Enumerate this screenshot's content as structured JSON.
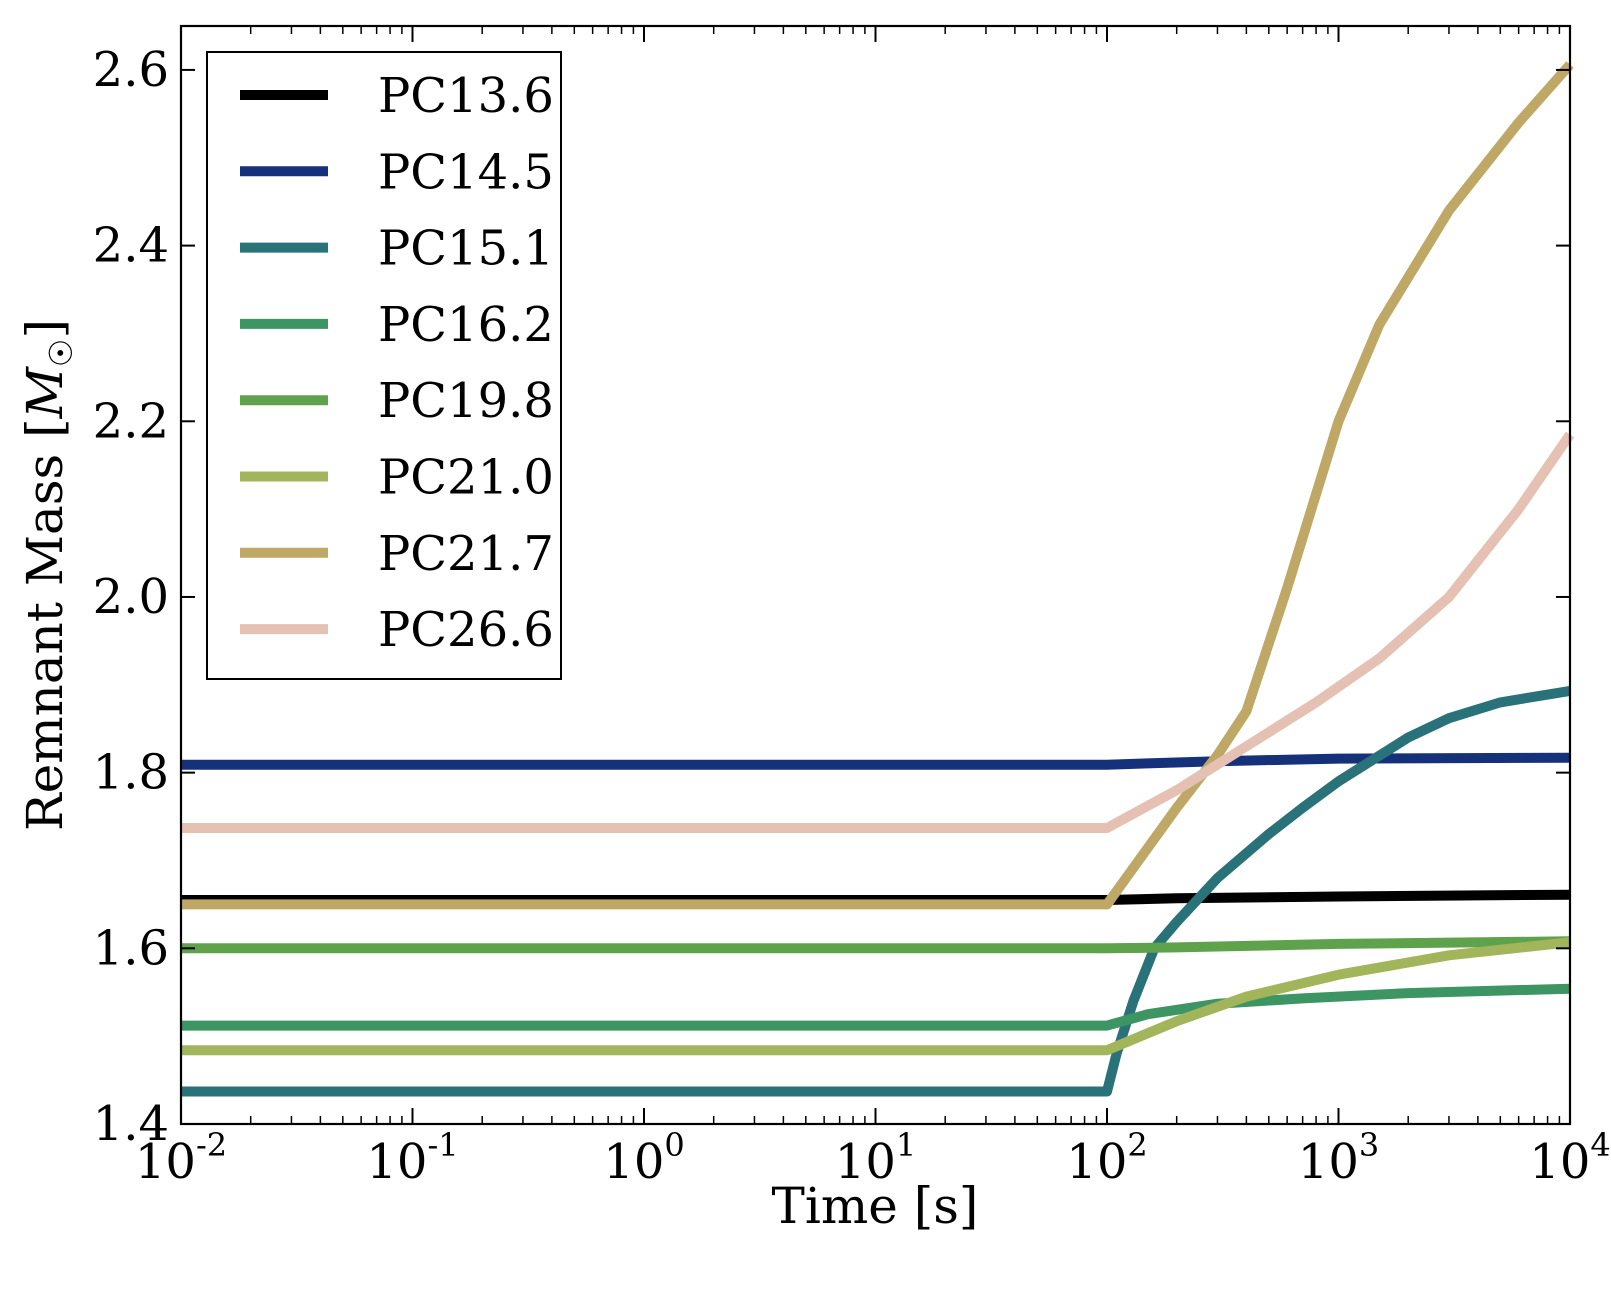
{
  "chart_data": {
    "type": "line",
    "title": "",
    "xlabel": "Time [s]",
    "ylabel_text": "Remnant Mass [",
    "ylabel_symbol": "M",
    "ylabel_subscript": "☉",
    "ylabel_close": "]",
    "xscale": "log",
    "xlim": [
      0.01,
      10000
    ],
    "ylim": [
      1.4,
      2.65
    ],
    "grid": false,
    "legend_position": "top-left",
    "x_ticks": [
      {
        "base": "10",
        "exp": "-2",
        "value": 0.01
      },
      {
        "base": "10",
        "exp": "-1",
        "value": 0.1
      },
      {
        "base": "10",
        "exp": "0",
        "value": 1
      },
      {
        "base": "10",
        "exp": "1",
        "value": 10
      },
      {
        "base": "10",
        "exp": "2",
        "value": 100
      },
      {
        "base": "10",
        "exp": "3",
        "value": 1000
      },
      {
        "base": "10",
        "exp": "4",
        "value": 10000
      }
    ],
    "y_ticks": [
      "1.4",
      "1.6",
      "1.8",
      "2.0",
      "2.2",
      "2.4",
      "2.6"
    ],
    "series": [
      {
        "name": "PC13.6",
        "color": "#000000",
        "x": [
          0.01,
          100,
          200,
          1000,
          10000
        ],
        "y": [
          1.655,
          1.655,
          1.657,
          1.659,
          1.661
        ]
      },
      {
        "name": "PC14.5",
        "color": "#15317a",
        "x": [
          0.01,
          100,
          300,
          1000,
          10000
        ],
        "y": [
          1.809,
          1.809,
          1.813,
          1.816,
          1.817
        ]
      },
      {
        "name": "PC15.1",
        "color": "#2a727a",
        "x": [
          0.01,
          100,
          110,
          130,
          160,
          200,
          300,
          500,
          700,
          1000,
          2000,
          3000,
          5000,
          10000
        ],
        "y": [
          1.437,
          1.437,
          1.48,
          1.54,
          1.6,
          1.63,
          1.68,
          1.73,
          1.76,
          1.79,
          1.84,
          1.862,
          1.88,
          1.893
        ]
      },
      {
        "name": "PC16.2",
        "color": "#3c9562",
        "x": [
          0.01,
          100,
          150,
          300,
          700,
          2000,
          10000
        ],
        "y": [
          1.512,
          1.512,
          1.525,
          1.537,
          1.543,
          1.549,
          1.554
        ]
      },
      {
        "name": "PC19.8",
        "color": "#5ea34c",
        "x": [
          0.01,
          100,
          200,
          1000,
          10000
        ],
        "y": [
          1.6,
          1.6,
          1.601,
          1.605,
          1.608
        ]
      },
      {
        "name": "PC21.0",
        "color": "#a2b55a",
        "x": [
          0.01,
          100,
          200,
          400,
          1000,
          3000,
          10000
        ],
        "y": [
          1.484,
          1.484,
          1.517,
          1.545,
          1.57,
          1.592,
          1.607
        ]
      },
      {
        "name": "PC21.7",
        "color": "#bfa865",
        "x": [
          0.01,
          100,
          200,
          300,
          400,
          600,
          1000,
          1500,
          3000,
          6000,
          10000
        ],
        "y": [
          1.65,
          1.65,
          1.76,
          1.82,
          1.87,
          2.01,
          2.2,
          2.31,
          2.44,
          2.54,
          2.606
        ]
      },
      {
        "name": "PC26.6",
        "color": "#e5c1b3",
        "x": [
          0.01,
          100,
          200,
          400,
          800,
          1500,
          3000,
          6000,
          10000
        ],
        "y": [
          1.737,
          1.737,
          1.78,
          1.83,
          1.88,
          1.93,
          2.0,
          2.1,
          2.185
        ]
      }
    ]
  }
}
